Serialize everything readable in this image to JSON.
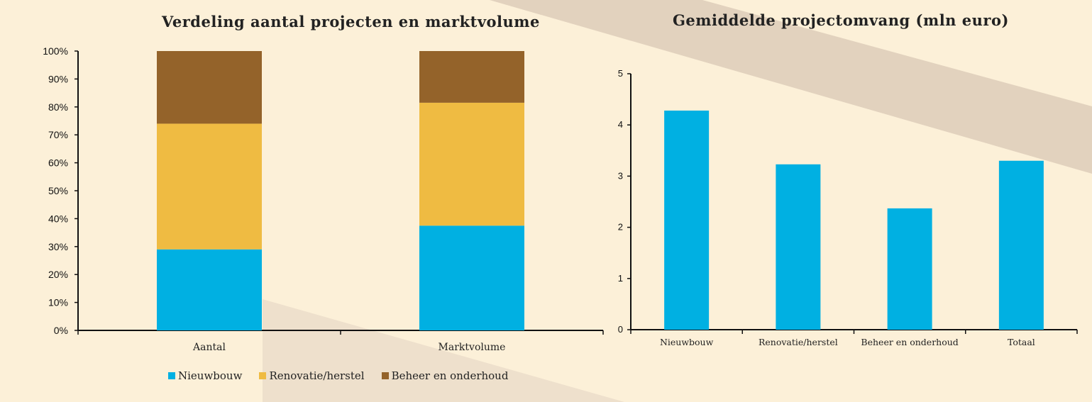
{
  "charts": [
    {
      "id": "chart1",
      "type": "bar",
      "stacked": true,
      "title": "Verdeling aantal projecten en marktvolume",
      "categories": [
        "Aantal",
        "Marktvolume"
      ],
      "series": [
        {
          "name": "Nieuwbouw",
          "color": "#00b0e2",
          "values": [
            29,
            37.5
          ]
        },
        {
          "name": "Renovatie/herstel",
          "color": "#efbb42",
          "values": [
            45,
            44
          ]
        },
        {
          "name": "Beheer en onderhoud",
          "color": "#94632a",
          "values": [
            26,
            18.5
          ]
        }
      ],
      "y_ticks": [
        "0%",
        "10%",
        "20%",
        "30%",
        "40%",
        "50%",
        "60%",
        "70%",
        "80%",
        "90%",
        "100%"
      ],
      "ylim": [
        0,
        100
      ],
      "legend_position": "bottom"
    },
    {
      "id": "chart2",
      "type": "bar",
      "title": "Gemiddelde projectomvang (mln euro)",
      "categories": [
        "Nieuwbouw",
        "Renovatie/herstel",
        "Beheer en onderhoud",
        "Totaal"
      ],
      "values": [
        4.28,
        3.23,
        2.37,
        3.3
      ],
      "color": "#00b0e2",
      "y_ticks": [
        "0",
        "1",
        "2",
        "3",
        "4",
        "5"
      ],
      "ylim": [
        0,
        5
      ]
    }
  ]
}
